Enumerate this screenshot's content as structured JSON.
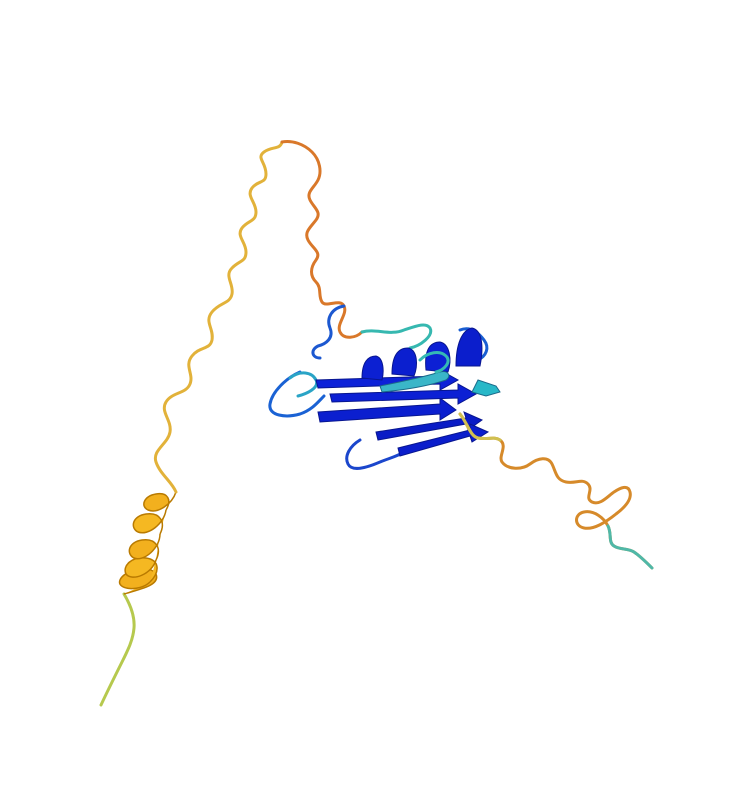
{
  "image": {
    "background": "#ffffff",
    "palette": {
      "very_high": "#0a1fd0",
      "high": "#1a6fd6",
      "mid": "#36c0c0",
      "low": "#f2c02a",
      "very_low": "#e07a2a"
    },
    "regions": [
      "n-terminal-tail",
      "helix",
      "long-loop",
      "beta-sheet-domain",
      "c-terminal-tail"
    ]
  }
}
